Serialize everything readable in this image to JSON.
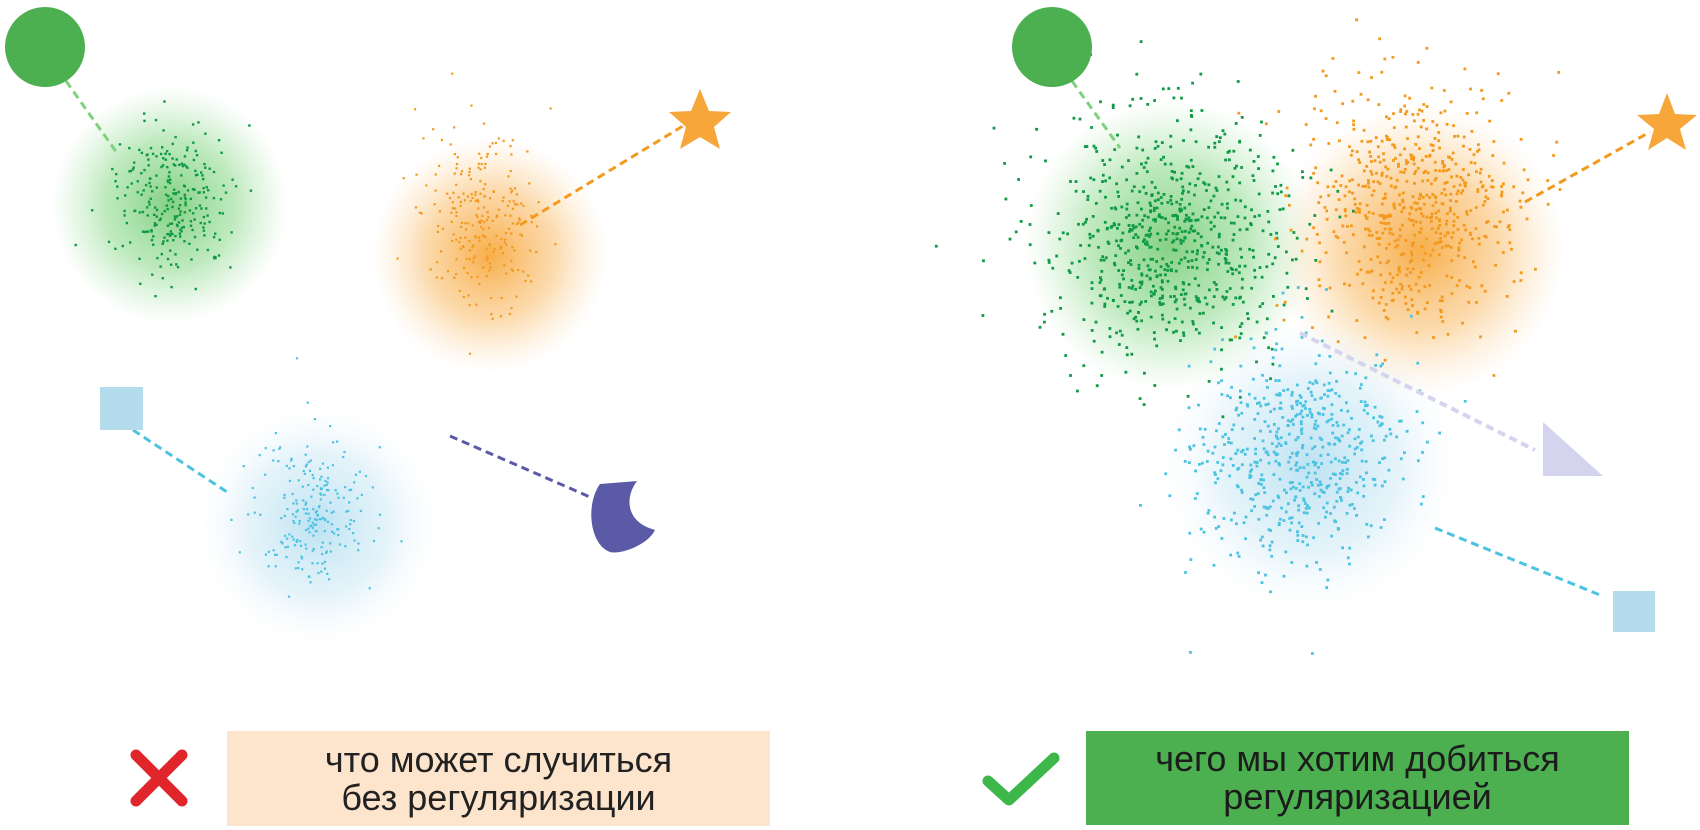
{
  "colors": {
    "green": "#4caf50",
    "green_dots": "#0f9a45",
    "orange": "#f7a63a",
    "orange_dots": "#f39a1e",
    "blue": "#aedbee",
    "blue_dots": "#4cc3e0",
    "purple": "#5b5aa6",
    "lavender": "#d4d4ef",
    "cross_red": "#e0262b",
    "check_green": "#3db64a",
    "left_box_bg": "#fde4cc",
    "right_box_bg": "#4caf50",
    "left_text": "#222222",
    "right_text": "#1c1c1c"
  },
  "left_panel": {
    "clusters": [
      "green",
      "orange",
      "blue"
    ],
    "anchors": [
      "circle-icon",
      "star-icon",
      "square-icon",
      "moon-icon"
    ],
    "caption_line1": "что может случиться",
    "caption_line2": "без регуляризации",
    "status_icon": "cross-icon"
  },
  "right_panel": {
    "clusters": [
      "green",
      "orange",
      "blue"
    ],
    "anchors": [
      "circle-icon",
      "star-icon",
      "square-icon",
      "triangle-icon"
    ],
    "caption_line1": "чего мы хотим добиться",
    "caption_line2": "регуляризацией",
    "status_icon": "check-icon"
  }
}
